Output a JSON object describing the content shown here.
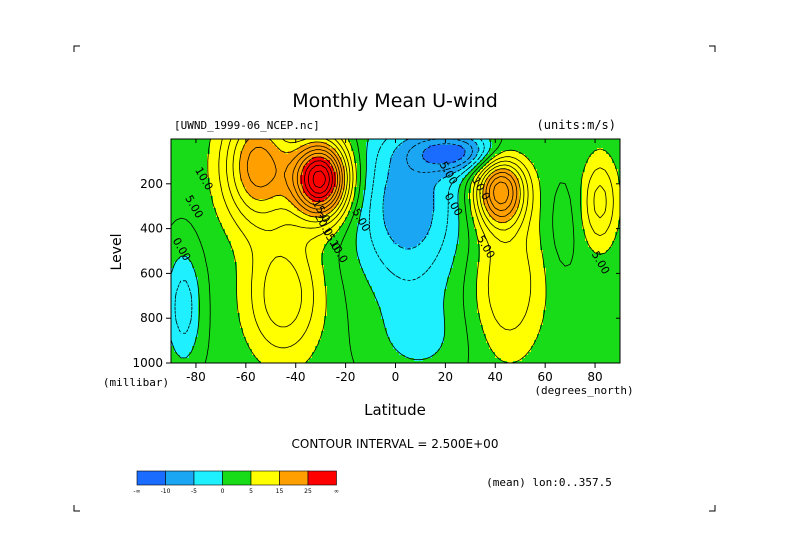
{
  "chart_data": {
    "type": "heatmap",
    "title": "Monthly Mean U-wind",
    "subtitle_left": "[UWND_1999-06_NCEP.nc]",
    "subtitle_right": "(units:m/s)",
    "xlabel": "Latitude",
    "ylabel": "Level",
    "x_unit": "(degrees_north)",
    "y_unit": "(millibar)",
    "xlim": [
      -90,
      90
    ],
    "ylim": [
      1000,
      0
    ],
    "x_ticks": [
      "-80",
      "-60",
      "-40",
      "-20",
      "0",
      "20",
      "40",
      "60",
      "80"
    ],
    "x_tick_values": [
      -80,
      -60,
      -40,
      -20,
      0,
      20,
      40,
      60,
      80
    ],
    "y_ticks": [
      "200",
      "400",
      "600",
      "800",
      "1000"
    ],
    "y_tick_values": [
      200,
      400,
      600,
      800,
      1000
    ],
    "contour_interval_text": "CONTOUR INTERVAL = 2.500E+00",
    "mean_text": "(mean) lon:0..357.5",
    "colorbar": {
      "colors": [
        "#1a6cff",
        "#1aa6f2",
        "#1ef0ff",
        "#18dc18",
        "#ffff00",
        "#ffa000",
        "#ff0000"
      ],
      "labels": [
        "-∞",
        "-10",
        "-5",
        "0",
        "5",
        "15",
        "25",
        "∞"
      ]
    },
    "contour_labels": [
      {
        "text": "10.0",
        "lat": -78,
        "lev": 185
      },
      {
        "text": "5.00",
        "lat": -82,
        "lev": 310
      },
      {
        "text": "0.00",
        "lat": -87,
        "lev": 500
      },
      {
        "text": "15.0",
        "lat": -31,
        "lev": 330
      },
      {
        "text": "20.0",
        "lat": -30,
        "lev": 390
      },
      {
        "text": "15.0",
        "lat": -27,
        "lev": 455
      },
      {
        "text": "10.0",
        "lat": -24,
        "lev": 510
      },
      {
        "text": "5.00",
        "lat": -15,
        "lev": 370
      },
      {
        "text": "5.00",
        "lat": 20,
        "lev": 160
      },
      {
        "text": "0.00",
        "lat": 22,
        "lev": 300
      },
      {
        "text": "10.0",
        "lat": 33,
        "lev": 230
      },
      {
        "text": "5.00",
        "lat": 35,
        "lev": 490
      },
      {
        "text": "5.00",
        "lat": 81,
        "lev": 560
      }
    ]
  }
}
